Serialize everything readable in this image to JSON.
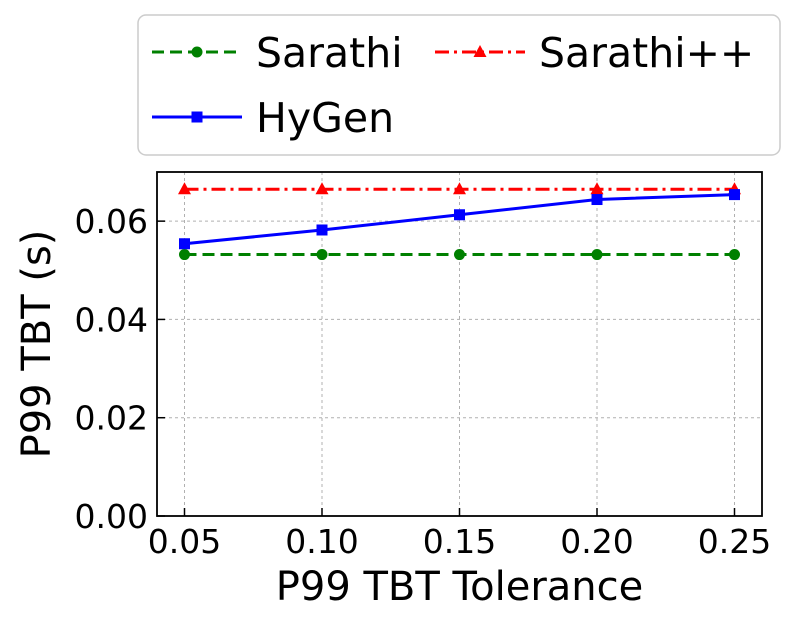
{
  "chart_data": {
    "type": "line",
    "title": "",
    "xlabel": "P99 TBT Tolerance",
    "ylabel": "P99 TBT (s)",
    "x": [
      0.05,
      0.1,
      0.15,
      0.2,
      0.25
    ],
    "xtick_labels": [
      "0.05",
      "0.10",
      "0.15",
      "0.20",
      "0.25"
    ],
    "xlim": [
      0.04,
      0.26
    ],
    "yticks": [
      0.0,
      0.02,
      0.04,
      0.06
    ],
    "ytick_labels": [
      "0.00",
      "0.02",
      "0.04",
      "0.06"
    ],
    "ylim": [
      0.0,
      0.07
    ],
    "grid": true,
    "legend_position": "top, outside plot",
    "series": [
      {
        "name": "Sarathi",
        "color": "#008000",
        "line_style": "dashed",
        "marker": "circle",
        "values": [
          0.0532,
          0.0532,
          0.0532,
          0.0532,
          0.0532
        ]
      },
      {
        "name": "Sarathi++",
        "color": "#ff0000",
        "line_style": "dash-dot",
        "marker": "triangle",
        "values": [
          0.0665,
          0.0665,
          0.0665,
          0.0665,
          0.0665
        ]
      },
      {
        "name": "HyGen",
        "color": "#0000ff",
        "line_style": "solid",
        "marker": "square",
        "values": [
          0.0554,
          0.0582,
          0.0613,
          0.0644,
          0.0654
        ]
      }
    ]
  }
}
